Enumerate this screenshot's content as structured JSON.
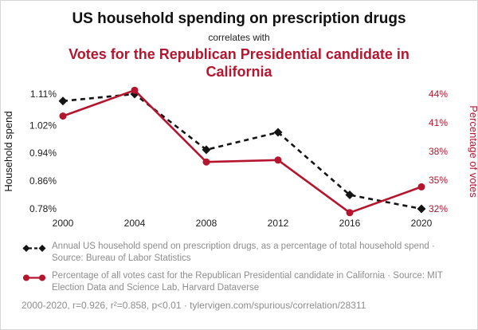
{
  "header": {
    "title": "US household spending on prescription drugs",
    "correlates_label": "correlates with",
    "red_title": "Votes for the Republican Presidential candidate in California"
  },
  "colors": {
    "black_series": "#141414",
    "red_accent": "#b5152e",
    "muted_text": "#8d8d8d"
  },
  "chart_data": {
    "type": "line",
    "title": "US household spending on prescription drugs correlates with Votes for the Republican Presidential candidate in California",
    "x": [
      2000,
      2004,
      2008,
      2012,
      2016,
      2020
    ],
    "series": [
      {
        "name": "Annual US household spend on prescription drugs, as a percentage of total household spend",
        "axis": "left",
        "values": [
          1.09,
          1.11,
          0.95,
          1.0,
          0.82,
          0.78
        ],
        "color": "#141414",
        "style": "dashed",
        "marker": "diamond"
      },
      {
        "name": "Percentage of all votes cast for the Republican Presidential candidate in California",
        "axis": "right",
        "values": [
          41.7,
          44.4,
          36.9,
          37.1,
          31.6,
          34.3
        ],
        "color": "#b5152e",
        "style": "solid",
        "marker": "circle"
      }
    ],
    "left_axis": {
      "label": "Household spend",
      "range": [
        0.78,
        1.11
      ],
      "ticks": [
        1.11,
        1.02,
        0.94,
        0.86,
        0.78
      ],
      "tick_labels": [
        "1.11%",
        "1.02%",
        "0.94%",
        "0.86%",
        "0.78%"
      ]
    },
    "right_axis": {
      "label": "Percentage of votes",
      "range": [
        32,
        44
      ],
      "ticks": [
        44,
        41,
        38,
        35,
        32
      ],
      "tick_labels": [
        "44%",
        "41%",
        "38%",
        "35%",
        "32%"
      ]
    },
    "grid": false,
    "legend_position": "bottom"
  },
  "legend": [
    {
      "text": "Annual US household spend on prescription drugs, as a percentage of total household spend · Source: Bureau of Labor Statistics"
    },
    {
      "text": "Percentage of all votes cast for the Republican Presidential candidate in California · Source: MIT Election Data and Science Lab, Harvard Dataverse"
    }
  ],
  "footer": {
    "text": "2000-2020, r=0.926, r²=0.858, p<0.01 · tylervigen.com/spurious/correlation/28311"
  }
}
